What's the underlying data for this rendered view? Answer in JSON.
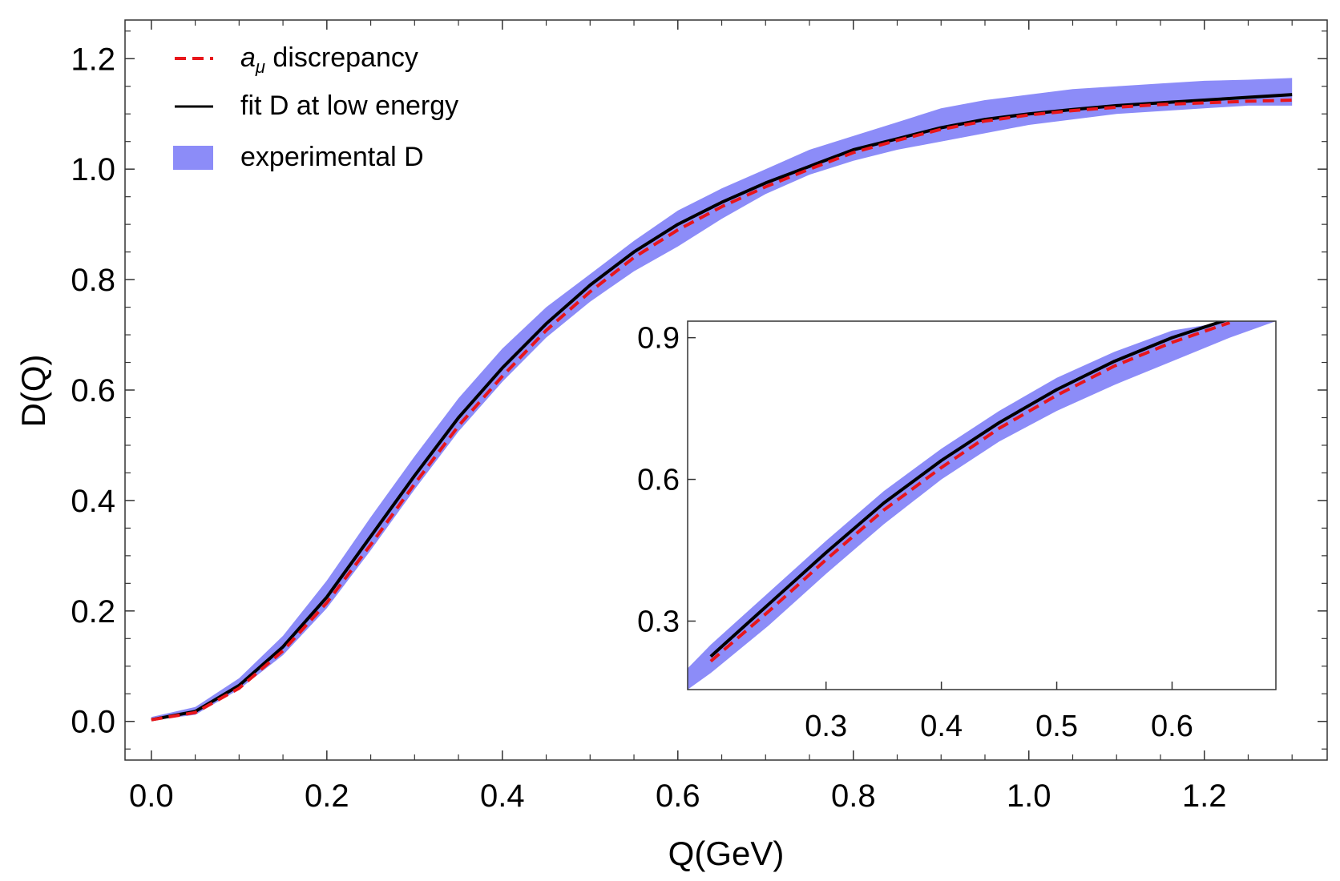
{
  "chart_data": [
    {
      "id": "main",
      "type": "line",
      "title": "",
      "xlabel": "Q(GeV)",
      "ylabel": "D(Q)",
      "xlim": [
        -0.03,
        1.34
      ],
      "ylim": [
        -0.07,
        1.27
      ],
      "xticks": [
        0.0,
        0.2,
        0.4,
        0.6,
        0.8,
        1.0,
        1.2
      ],
      "xtick_labels": [
        "0.0",
        "0.2",
        "0.4",
        "0.6",
        "0.8",
        "1.0",
        "1.2"
      ],
      "yticks": [
        0.0,
        0.2,
        0.4,
        0.6,
        0.8,
        1.0,
        1.2
      ],
      "ytick_labels": [
        "0.0",
        "0.2",
        "0.4",
        "0.6",
        "0.8",
        "1.0",
        "1.2"
      ],
      "legend": {
        "position": "top-left",
        "entries": [
          {
            "prefix": "a",
            "sub": "μ",
            "label": " discrepancy",
            "style": "dashed",
            "color": "#e8161b"
          },
          {
            "prefix": "",
            "sub": "",
            "label": "fit D at low energy",
            "style": "solid",
            "color": "#000000"
          },
          {
            "prefix": "",
            "sub": "",
            "label": "experimental D",
            "style": "band",
            "color": "#8c8cf8"
          }
        ]
      },
      "series": [
        {
          "name": "experimental D",
          "style": "band",
          "color": "#8c8cf8",
          "x": [
            0.0,
            0.05,
            0.1,
            0.15,
            0.2,
            0.25,
            0.3,
            0.35,
            0.4,
            0.45,
            0.5,
            0.55,
            0.6,
            0.65,
            0.7,
            0.75,
            0.8,
            0.85,
            0.9,
            0.95,
            1.0,
            1.05,
            1.1,
            1.15,
            1.2,
            1.25,
            1.3
          ],
          "lower": [
            0.002,
            0.012,
            0.058,
            0.12,
            0.205,
            0.31,
            0.42,
            0.525,
            0.615,
            0.695,
            0.76,
            0.815,
            0.86,
            0.91,
            0.955,
            0.99,
            1.015,
            1.035,
            1.05,
            1.065,
            1.08,
            1.09,
            1.1,
            1.105,
            1.11,
            1.115,
            1.115
          ],
          "upper": [
            0.008,
            0.026,
            0.078,
            0.155,
            0.255,
            0.37,
            0.48,
            0.585,
            0.675,
            0.75,
            0.81,
            0.87,
            0.925,
            0.965,
            1.0,
            1.035,
            1.06,
            1.085,
            1.11,
            1.125,
            1.135,
            1.145,
            1.15,
            1.155,
            1.16,
            1.162,
            1.165
          ]
        },
        {
          "name": "fit D at low energy",
          "style": "solid",
          "color": "#000000",
          "x": [
            0.0,
            0.05,
            0.1,
            0.15,
            0.2,
            0.25,
            0.3,
            0.35,
            0.4,
            0.45,
            0.5,
            0.55,
            0.6,
            0.65,
            0.7,
            0.75,
            0.8,
            0.85,
            0.9,
            0.95,
            1.0,
            1.05,
            1.1,
            1.15,
            1.2,
            1.25,
            1.3
          ],
          "y": [
            0.003,
            0.018,
            0.065,
            0.135,
            0.225,
            0.335,
            0.445,
            0.55,
            0.64,
            0.72,
            0.79,
            0.85,
            0.9,
            0.94,
            0.975,
            1.005,
            1.035,
            1.055,
            1.075,
            1.09,
            1.1,
            1.108,
            1.115,
            1.12,
            1.125,
            1.13,
            1.135
          ]
        },
        {
          "name": "a_μ discrepancy",
          "style": "dashed",
          "color": "#e8161b",
          "x": [
            0.0,
            0.05,
            0.1,
            0.15,
            0.2,
            0.25,
            0.3,
            0.35,
            0.4,
            0.45,
            0.5,
            0.55,
            0.6,
            0.65,
            0.7,
            0.75,
            0.8,
            0.85,
            0.9,
            0.95,
            1.0,
            1.05,
            1.1,
            1.15,
            1.2,
            1.25,
            1.3
          ],
          "y": [
            0.003,
            0.016,
            0.06,
            0.128,
            0.215,
            0.32,
            0.43,
            0.535,
            0.625,
            0.708,
            0.778,
            0.84,
            0.89,
            0.932,
            0.968,
            1.0,
            1.03,
            1.052,
            1.072,
            1.087,
            1.098,
            1.106,
            1.112,
            1.117,
            1.12,
            1.123,
            1.125
          ]
        }
      ]
    },
    {
      "id": "inset",
      "type": "line",
      "title": "",
      "xlabel": "",
      "ylabel": "",
      "xlim": [
        0.18,
        0.69
      ],
      "ylim": [
        0.155,
        0.935
      ],
      "xticks": [
        0.3,
        0.4,
        0.5,
        0.6
      ],
      "xtick_labels": [
        "0.3",
        "0.4",
        "0.5",
        "0.6"
      ],
      "yticks": [
        0.3,
        0.6,
        0.9
      ],
      "ytick_labels": [
        "0.3",
        "0.6",
        "0.9"
      ],
      "series": [
        {
          "name": "experimental D",
          "style": "band",
          "color": "#8c8cf8",
          "x": [
            0.18,
            0.2,
            0.25,
            0.3,
            0.35,
            0.4,
            0.45,
            0.5,
            0.55,
            0.6,
            0.65,
            0.69
          ],
          "lower": [
            0.155,
            0.19,
            0.29,
            0.4,
            0.505,
            0.6,
            0.68,
            0.745,
            0.8,
            0.85,
            0.9,
            0.935
          ],
          "upper": [
            0.2,
            0.25,
            0.36,
            0.47,
            0.575,
            0.665,
            0.745,
            0.815,
            0.87,
            0.915,
            0.935,
            0.935
          ]
        },
        {
          "name": "fit D at low energy",
          "style": "solid",
          "color": "#000000",
          "x": [
            0.2,
            0.25,
            0.3,
            0.35,
            0.4,
            0.45,
            0.5,
            0.55,
            0.6,
            0.65
          ],
          "y": [
            0.225,
            0.335,
            0.445,
            0.55,
            0.64,
            0.72,
            0.79,
            0.85,
            0.9,
            0.94
          ]
        },
        {
          "name": "a_μ discrepancy",
          "style": "dashed",
          "color": "#e8161b",
          "x": [
            0.2,
            0.25,
            0.3,
            0.35,
            0.4,
            0.45,
            0.5,
            0.55,
            0.6,
            0.65
          ],
          "y": [
            0.215,
            0.32,
            0.43,
            0.535,
            0.625,
            0.708,
            0.778,
            0.84,
            0.89,
            0.932
          ]
        }
      ]
    }
  ]
}
